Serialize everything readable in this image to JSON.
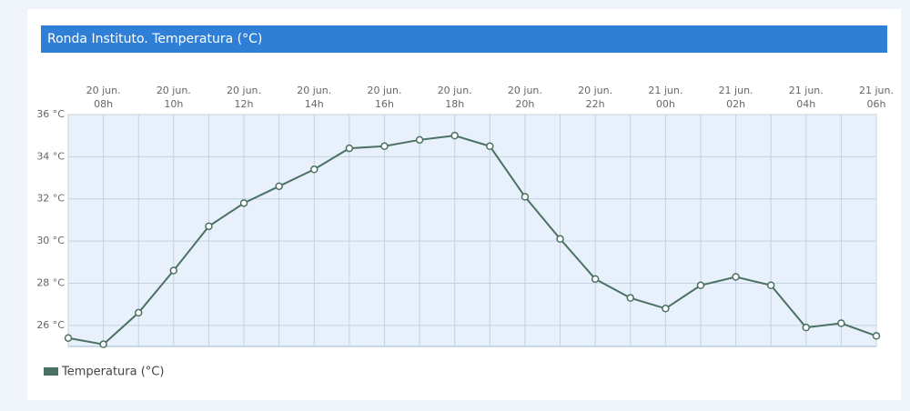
{
  "chart_data": {
    "type": "line",
    "title": "Ronda Instituto. Temperatura (°C)",
    "categories": [
      null,
      [
        "20 jun.",
        "08h"
      ],
      null,
      [
        "20 jun.",
        "10h"
      ],
      null,
      [
        "20 jun.",
        "12h"
      ],
      null,
      [
        "20 jun.",
        "14h"
      ],
      null,
      [
        "20 jun.",
        "16h"
      ],
      null,
      [
        "20 jun.",
        "18h"
      ],
      null,
      [
        "20 jun.",
        "20h"
      ],
      null,
      [
        "20 jun.",
        "22h"
      ],
      null,
      [
        "21 jun.",
        "00h"
      ],
      null,
      [
        "21 jun.",
        "02h"
      ],
      null,
      [
        "21 jun.",
        "04h"
      ],
      null,
      [
        "21 jun.",
        "06h"
      ]
    ],
    "series": [
      {
        "name": "Temperatura (°C)",
        "color": "#4b7163",
        "values": [
          25.4,
          25.1,
          26.6,
          28.6,
          30.7,
          31.8,
          32.6,
          33.4,
          34.4,
          34.5,
          34.8,
          35.0,
          34.5,
          32.1,
          30.1,
          28.2,
          27.3,
          26.8,
          27.9,
          28.3,
          27.9,
          25.9,
          26.1,
          25.5
        ]
      }
    ],
    "ylim": [
      25,
      36
    ],
    "yticks": [
      {
        "value": 26,
        "label": "26 °C"
      },
      {
        "value": 28,
        "label": "28 °C"
      },
      {
        "value": 30,
        "label": "30 °C"
      },
      {
        "value": 32,
        "label": "32 °C"
      },
      {
        "value": 34,
        "label": "34 °C"
      },
      {
        "value": 36,
        "label": "36 °C"
      }
    ],
    "grid": true
  }
}
